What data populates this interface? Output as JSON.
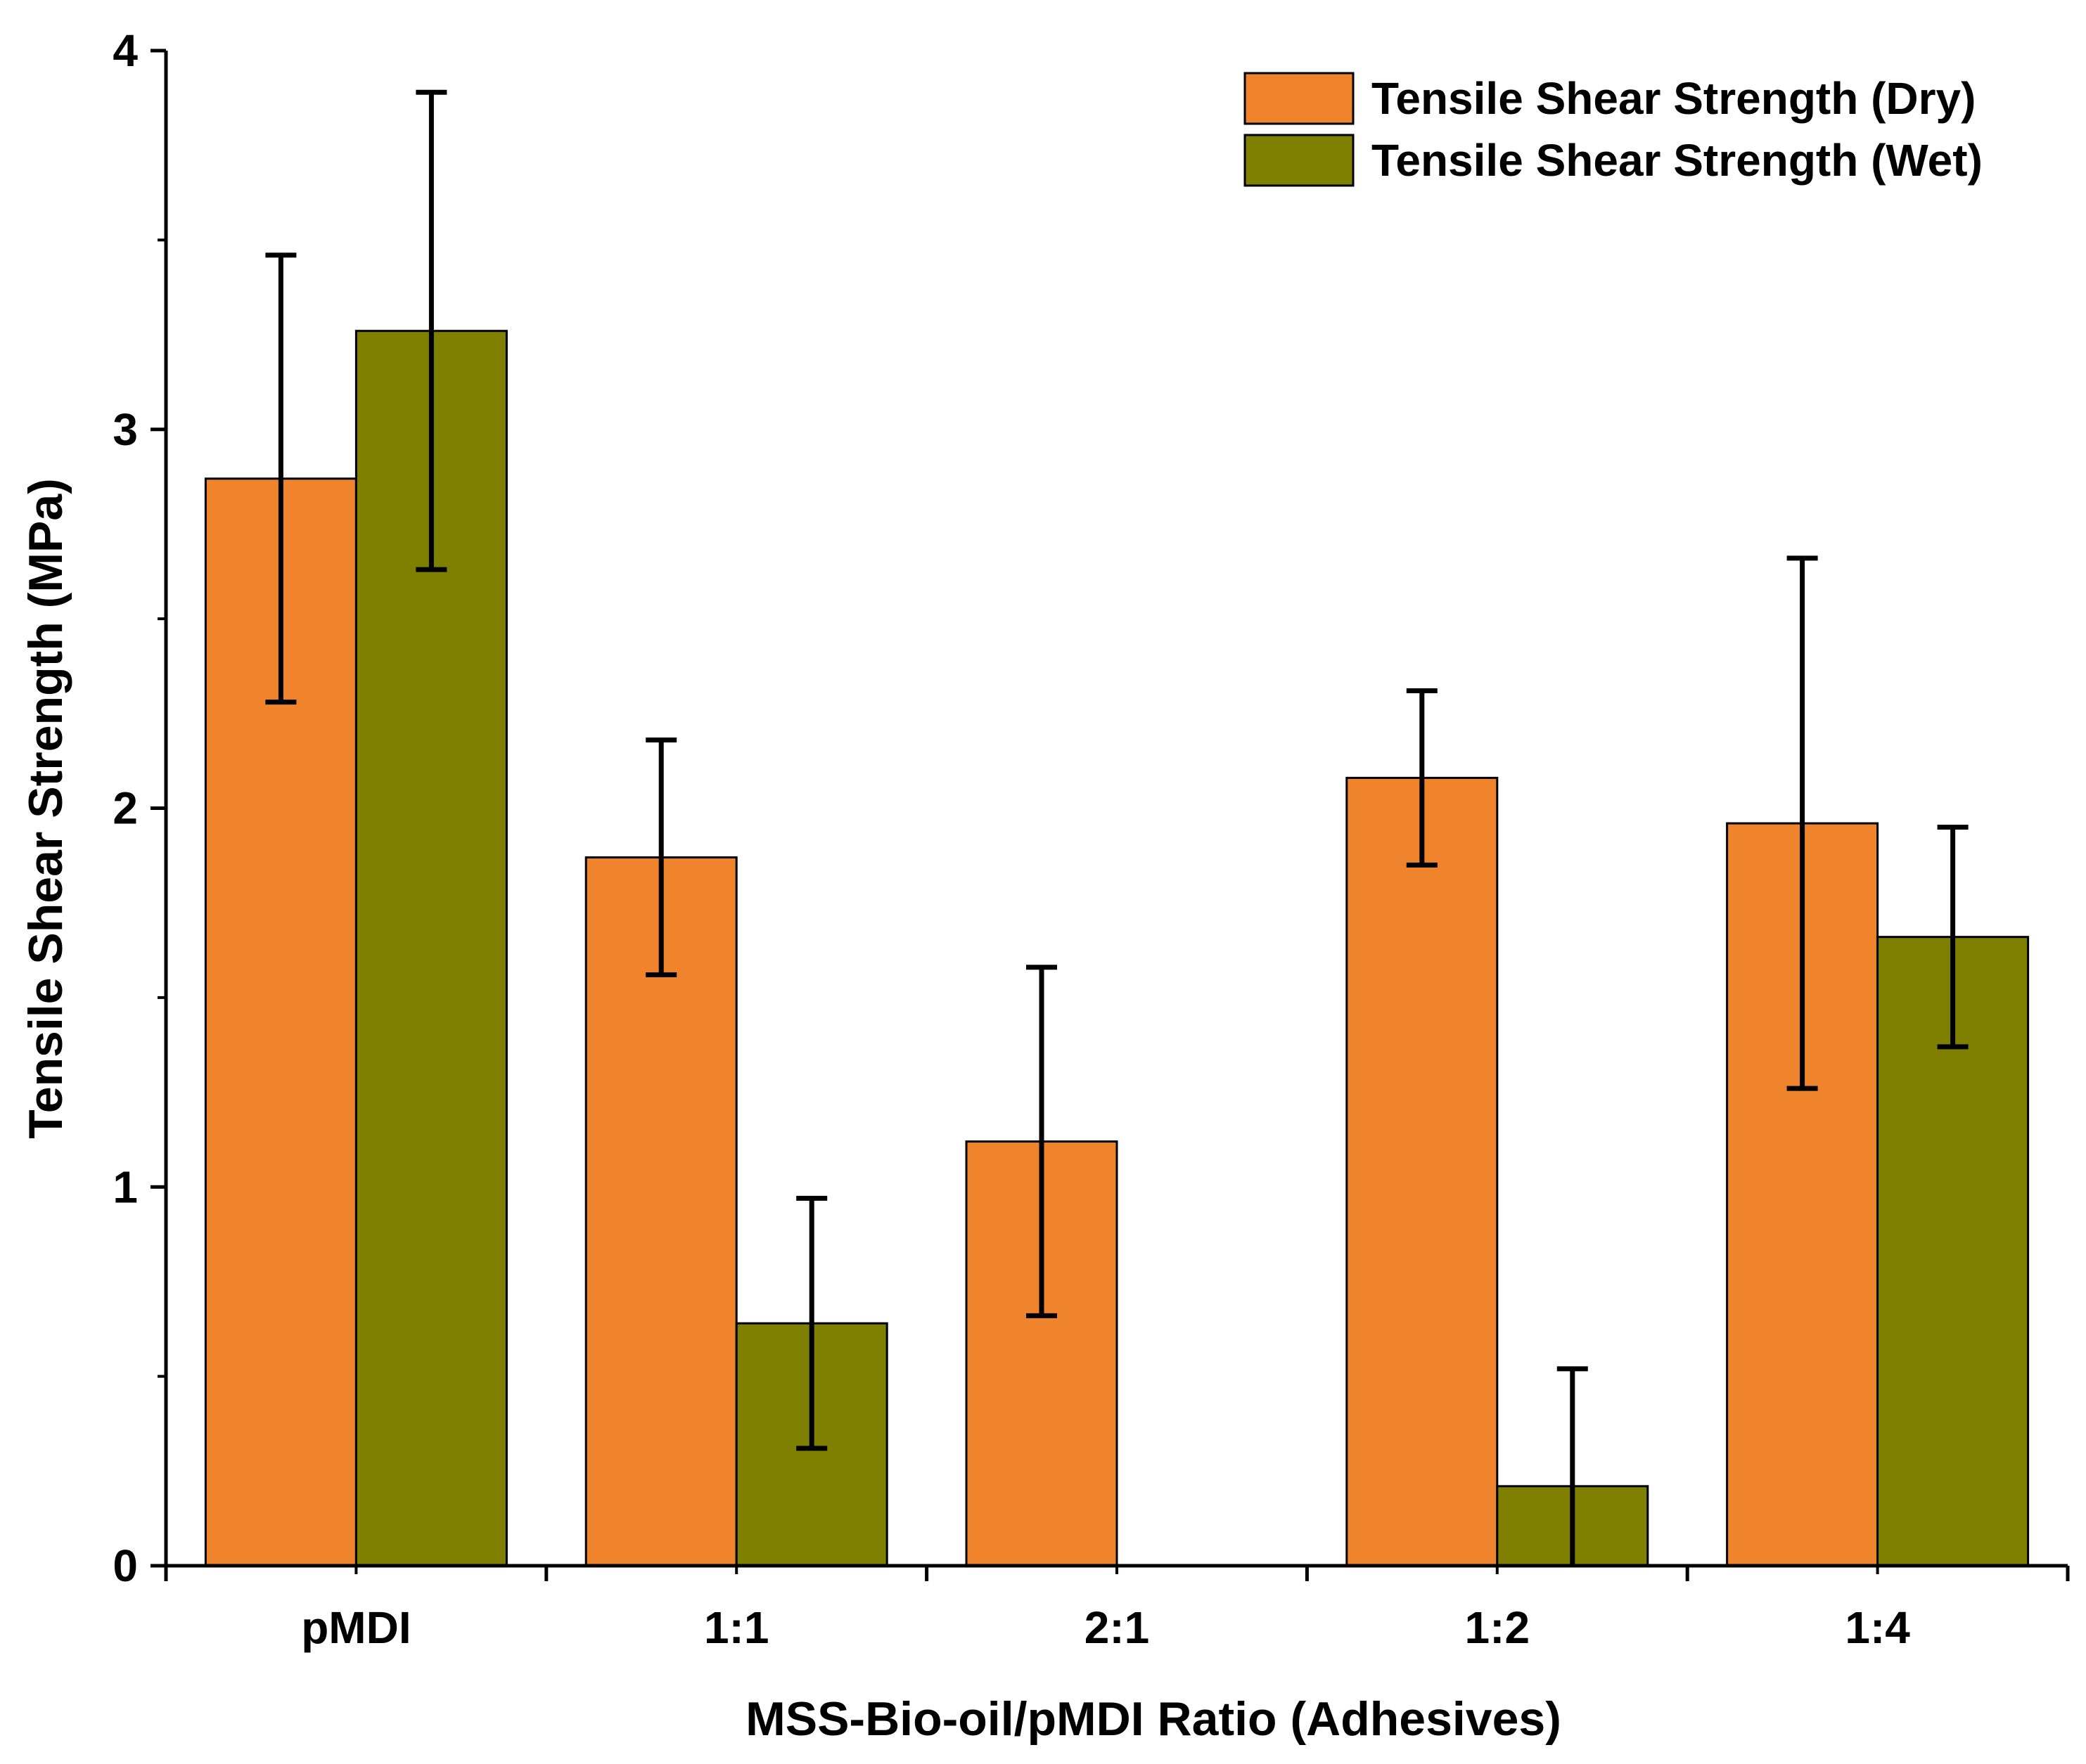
{
  "chart_data": {
    "type": "bar",
    "title": "",
    "xlabel": "MSS-Bio-oil/pMDI Ratio (Adhesives)",
    "ylabel": "Tensile Shear Strength (MPa)",
    "ylim": [
      0,
      4
    ],
    "yticks": [
      "0",
      "1",
      "2",
      "3",
      "4"
    ],
    "categories": [
      "pMDI",
      "1:1",
      "2:1",
      "1:2",
      "1:4"
    ],
    "legend_position": "top-right",
    "grid": false,
    "series": [
      {
        "name": "Tensile Shear Strength (Dry)",
        "color": "#F0842C",
        "values": [
          2.87,
          1.87,
          1.12,
          2.08,
          1.96
        ],
        "errors": [
          0.59,
          0.31,
          0.46,
          0.23,
          0.7
        ]
      },
      {
        "name": "Tensile Shear Strength (Wet)",
        "color": "#808000",
        "values": [
          3.26,
          0.64,
          0.0,
          0.21,
          1.66
        ],
        "errors": [
          0.63,
          0.33,
          0.0,
          0.31,
          0.29
        ]
      }
    ]
  }
}
